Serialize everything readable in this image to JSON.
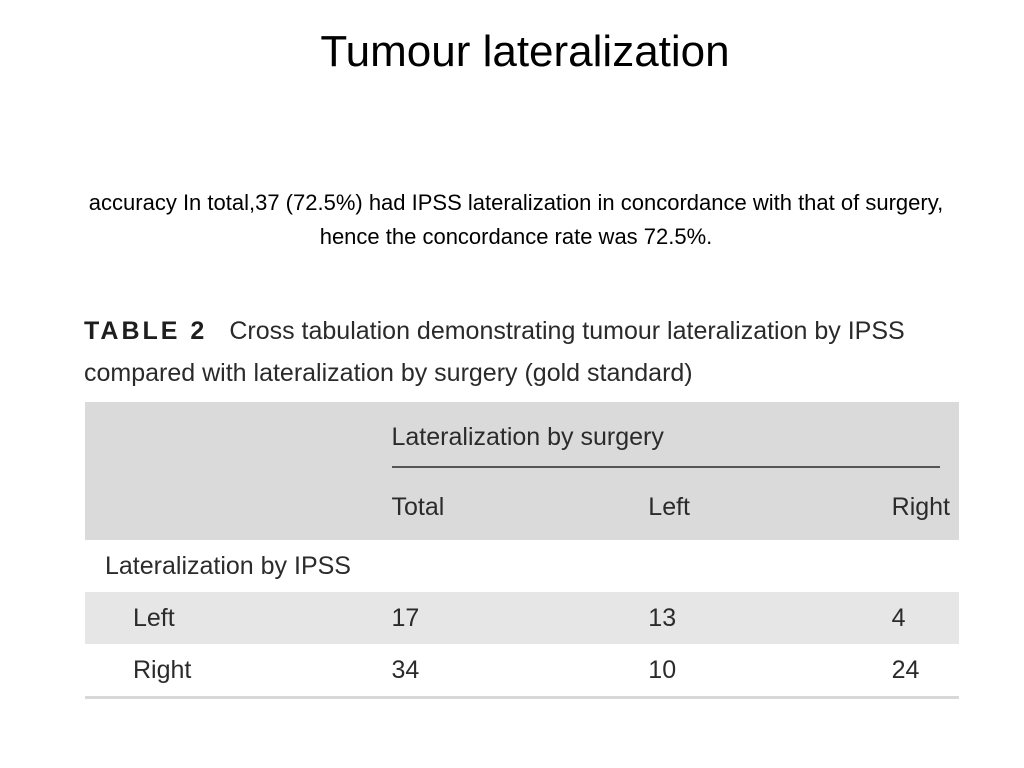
{
  "slide": {
    "title": "Tumour lateralization",
    "caption": "accuracy In total,37 (72.5%) had IPSS lateralization in concordance with that of surgery, hence the concordance  rate was 72.5%."
  },
  "table": {
    "label": "TABLE 2",
    "caption": "Cross tabulation demonstrating tumour lateralization by IPSS compared with lateralization by surgery (gold standard)",
    "group_header": "Lateralization by surgery",
    "columns": [
      "Total",
      "Left",
      "Right"
    ],
    "row_section": "Lateralization by IPSS",
    "rows": [
      {
        "label": "Left",
        "values": [
          "17",
          "13",
          "4"
        ]
      },
      {
        "label": "Right",
        "values": [
          "34",
          "10",
          "24"
        ]
      }
    ]
  },
  "colors": {
    "header_bg": "#dadada",
    "shaded_row_bg": "#e6e6e6"
  }
}
